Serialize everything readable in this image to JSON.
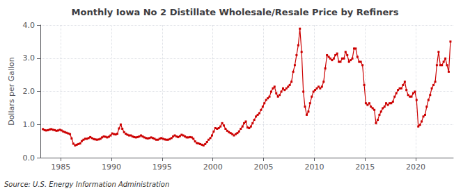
{
  "chart_data": {
    "type": "line",
    "title": "Monthly Iowa No 2 Distillate Wholesale/Resale Price by Refiners",
    "ylabel": "Dollars per Gallon",
    "annotation": "Source: U.S. Energy Information Administration",
    "color": "#cc0000",
    "marker": "square",
    "grid": true,
    "xlim": [
      1983.0,
      2023.7
    ],
    "ylim": [
      0.0,
      4.0
    ],
    "xticks": [
      1985,
      1990,
      1995,
      2000,
      2005,
      2010,
      2015,
      2020
    ],
    "yticks": [
      {
        "value": 0.0,
        "label": "0.0"
      },
      {
        "value": 1.0,
        "label": "1.0"
      },
      {
        "value": 2.0,
        "label": "2.0"
      },
      {
        "value": 3.0,
        "label": "3.0"
      },
      {
        "value": 4.0,
        "label": "4.0"
      }
    ],
    "x": [
      1983.25,
      1983.42,
      1983.58,
      1983.75,
      1983.92,
      1984.08,
      1984.25,
      1984.42,
      1984.58,
      1984.75,
      1984.92,
      1985.08,
      1985.25,
      1985.42,
      1985.58,
      1985.75,
      1985.92,
      1986.08,
      1986.25,
      1986.42,
      1986.58,
      1986.75,
      1986.92,
      1987.08,
      1987.25,
      1987.42,
      1987.58,
      1987.75,
      1987.92,
      1988.08,
      1988.25,
      1988.42,
      1988.58,
      1988.75,
      1988.92,
      1989.08,
      1989.25,
      1989.42,
      1989.58,
      1989.75,
      1989.92,
      1990.08,
      1990.25,
      1990.42,
      1990.58,
      1990.75,
      1990.92,
      1991.08,
      1991.25,
      1991.42,
      1991.58,
      1991.75,
      1991.92,
      1992.08,
      1992.25,
      1992.42,
      1992.58,
      1992.75,
      1992.92,
      1993.08,
      1993.25,
      1993.42,
      1993.58,
      1993.75,
      1993.92,
      1994.08,
      1994.25,
      1994.42,
      1994.58,
      1994.75,
      1994.92,
      1995.08,
      1995.25,
      1995.42,
      1995.58,
      1995.75,
      1995.92,
      1996.08,
      1996.25,
      1996.42,
      1996.58,
      1996.75,
      1996.92,
      1997.08,
      1997.25,
      1997.42,
      1997.58,
      1997.75,
      1997.92,
      1998.08,
      1998.25,
      1998.42,
      1998.58,
      1998.75,
      1998.92,
      1999.08,
      1999.25,
      1999.42,
      1999.58,
      1999.75,
      1999.92,
      2000.08,
      2000.25,
      2000.42,
      2000.58,
      2000.75,
      2000.92,
      2001.08,
      2001.25,
      2001.42,
      2001.58,
      2001.75,
      2001.92,
      2002.08,
      2002.25,
      2002.42,
      2002.58,
      2002.75,
      2002.92,
      2003.08,
      2003.25,
      2003.42,
      2003.58,
      2003.75,
      2003.92,
      2004.08,
      2004.25,
      2004.42,
      2004.58,
      2004.75,
      2004.92,
      2005.08,
      2005.25,
      2005.42,
      2005.58,
      2005.75,
      2005.92,
      2006.08,
      2006.25,
      2006.42,
      2006.58,
      2006.75,
      2006.92,
      2007.08,
      2007.25,
      2007.42,
      2007.58,
      2007.75,
      2007.92,
      2008.08,
      2008.25,
      2008.42,
      2008.58,
      2008.75,
      2008.92,
      2009.08,
      2009.25,
      2009.42,
      2009.58,
      2009.75,
      2009.92,
      2010.08,
      2010.25,
      2010.42,
      2010.58,
      2010.75,
      2010.92,
      2011.08,
      2011.25,
      2011.42,
      2011.58,
      2011.75,
      2011.92,
      2012.08,
      2012.25,
      2012.42,
      2012.58,
      2012.75,
      2012.92,
      2013.08,
      2013.25,
      2013.42,
      2013.58,
      2013.75,
      2013.92,
      2014.08,
      2014.25,
      2014.42,
      2014.58,
      2014.75,
      2014.92,
      2015.08,
      2015.25,
      2015.42,
      2015.58,
      2015.75,
      2015.92,
      2016.08,
      2016.25,
      2016.42,
      2016.58,
      2016.75,
      2016.92,
      2017.08,
      2017.25,
      2017.42,
      2017.58,
      2017.75,
      2017.92,
      2018.08,
      2018.25,
      2018.42,
      2018.58,
      2018.75,
      2018.92,
      2019.08,
      2019.25,
      2019.42,
      2019.58,
      2019.75,
      2019.92,
      2020.08,
      2020.25,
      2020.42,
      2020.58,
      2020.75,
      2020.92,
      2021.08,
      2021.25,
      2021.42,
      2021.58,
      2021.75,
      2021.92,
      2022.08,
      2022.25,
      2022.42,
      2022.58,
      2022.75,
      2022.92,
      2023.08,
      2023.25,
      2023.42
    ],
    "values": [
      0.86,
      0.83,
      0.82,
      0.83,
      0.85,
      0.86,
      0.84,
      0.83,
      0.81,
      0.82,
      0.84,
      0.82,
      0.79,
      0.77,
      0.75,
      0.73,
      0.71,
      0.58,
      0.42,
      0.37,
      0.39,
      0.41,
      0.43,
      0.5,
      0.54,
      0.57,
      0.57,
      0.59,
      0.62,
      0.59,
      0.56,
      0.55,
      0.54,
      0.55,
      0.57,
      0.61,
      0.64,
      0.63,
      0.61,
      0.63,
      0.67,
      0.73,
      0.71,
      0.7,
      0.72,
      0.88,
      1.0,
      0.87,
      0.77,
      0.72,
      0.69,
      0.67,
      0.67,
      0.64,
      0.62,
      0.61,
      0.62,
      0.64,
      0.67,
      0.64,
      0.61,
      0.59,
      0.58,
      0.59,
      0.61,
      0.59,
      0.57,
      0.54,
      0.54,
      0.57,
      0.59,
      0.57,
      0.55,
      0.54,
      0.54,
      0.56,
      0.59,
      0.64,
      0.67,
      0.64,
      0.62,
      0.65,
      0.69,
      0.67,
      0.64,
      0.61,
      0.61,
      0.62,
      0.61,
      0.57,
      0.49,
      0.44,
      0.43,
      0.41,
      0.39,
      0.37,
      0.41,
      0.47,
      0.54,
      0.59,
      0.67,
      0.79,
      0.89,
      0.87,
      0.89,
      0.94,
      1.04,
      0.97,
      0.87,
      0.81,
      0.77,
      0.74,
      0.71,
      0.67,
      0.71,
      0.74,
      0.79,
      0.87,
      0.94,
      1.04,
      1.09,
      0.91,
      0.89,
      0.94,
      1.04,
      1.14,
      1.24,
      1.29,
      1.34,
      1.44,
      1.54,
      1.64,
      1.74,
      1.79,
      1.84,
      1.99,
      2.09,
      2.14,
      1.94,
      1.84,
      1.89,
      1.99,
      2.09,
      2.04,
      2.09,
      2.14,
      2.19,
      2.29,
      2.59,
      2.79,
      3.09,
      3.39,
      3.89,
      3.19,
      1.99,
      1.54,
      1.29,
      1.39,
      1.64,
      1.84,
      1.99,
      2.04,
      2.09,
      2.14,
      2.09,
      2.14,
      2.29,
      2.69,
      3.09,
      3.04,
      2.99,
      2.94,
      2.99,
      3.09,
      3.14,
      2.89,
      2.89,
      2.99,
      2.99,
      3.19,
      3.09,
      2.89,
      2.94,
      2.99,
      3.29,
      3.29,
      3.04,
      2.89,
      2.89,
      2.79,
      2.19,
      1.64,
      1.59,
      1.64,
      1.54,
      1.49,
      1.44,
      1.04,
      1.14,
      1.29,
      1.39,
      1.49,
      1.54,
      1.64,
      1.59,
      1.64,
      1.64,
      1.69,
      1.84,
      1.94,
      2.04,
      2.09,
      2.09,
      2.19,
      2.29,
      2.04,
      1.89,
      1.84,
      1.84,
      1.94,
      1.99,
      1.74,
      0.94,
      0.99,
      1.09,
      1.24,
      1.29,
      1.54,
      1.74,
      1.89,
      2.09,
      2.19,
      2.29,
      2.79,
      3.19,
      2.79,
      2.79,
      2.89,
      2.99,
      2.79,
      2.59,
      3.5
    ]
  }
}
